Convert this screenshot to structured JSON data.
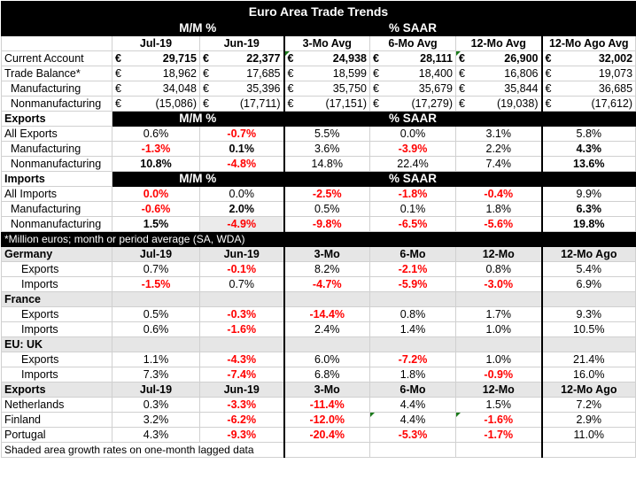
{
  "title": "Euro Area Trade Trends",
  "groups": {
    "mm": "M/M %",
    "saar": "% SAAR"
  },
  "cols": [
    "Jul-19",
    "Jun-19",
    "3-Mo Avg",
    "6-Mo Avg",
    "12-Mo Avg",
    "12-Mo Ago Avg"
  ],
  "euro": "€",
  "levels": [
    {
      "label": "Current Account",
      "vals": [
        "29,715",
        "22,377",
        "24,938",
        "28,111",
        "26,900",
        "32,002"
      ]
    },
    {
      "label": "Trade Balance*",
      "vals": [
        "18,962",
        "17,685",
        "18,599",
        "18,400",
        "16,806",
        "19,073"
      ]
    },
    {
      "label": "Manufacturing",
      "vals": [
        "34,048",
        "35,396",
        "35,750",
        "35,679",
        "35,844",
        "36,685"
      ]
    },
    {
      "label": "Nonmanufacturing",
      "vals": [
        "(15,086)",
        "(17,711)",
        "(17,151)",
        "(17,279)",
        "(19,038)",
        "(17,612)"
      ]
    }
  ],
  "exports": {
    "header": "Exports",
    "rows": [
      {
        "label": "All Exports",
        "vals": [
          "0.6%",
          "-0.7%",
          "5.5%",
          "0.0%",
          "3.1%",
          "5.8%"
        ]
      },
      {
        "label": "Manufacturing",
        "vals": [
          "-1.3%",
          "0.1%",
          "3.6%",
          "-3.9%",
          "2.2%",
          "4.3%"
        ]
      },
      {
        "label": "Nonmanufacturing",
        "vals": [
          "10.8%",
          "-4.8%",
          "14.8%",
          "22.4%",
          "7.4%",
          "13.6%"
        ]
      }
    ]
  },
  "imports": {
    "header": "Imports",
    "rows": [
      {
        "label": "All Imports",
        "vals": [
          "0.0%",
          "0.0%",
          "-2.5%",
          "-1.8%",
          "-0.4%",
          "9.9%"
        ]
      },
      {
        "label": "Manufacturing",
        "vals": [
          "-0.6%",
          "2.0%",
          "0.5%",
          "0.1%",
          "1.8%",
          "6.3%"
        ]
      },
      {
        "label": "Nonmanufacturing",
        "vals": [
          "1.5%",
          "-4.9%",
          "-9.8%",
          "-6.5%",
          "-5.6%",
          "19.8%"
        ]
      }
    ]
  },
  "note1": "*Million euros; month or period average (SA, WDA)",
  "cols2": [
    "Jul-19",
    "Jun-19",
    "3-Mo",
    "6-Mo",
    "12-Mo",
    "12-Mo Ago"
  ],
  "countries": [
    {
      "name": "Germany",
      "rows": [
        {
          "label": "Exports",
          "vals": [
            "0.7%",
            "-0.1%",
            "8.2%",
            "-2.1%",
            "0.8%",
            "5.4%"
          ]
        },
        {
          "label": "Imports",
          "vals": [
            "-1.5%",
            "0.7%",
            "-4.7%",
            "-5.9%",
            "-3.0%",
            "6.9%"
          ]
        }
      ]
    },
    {
      "name": "France",
      "rows": [
        {
          "label": "Exports",
          "vals": [
            "0.5%",
            "-0.3%",
            "-14.4%",
            "0.8%",
            "1.7%",
            "9.3%"
          ]
        },
        {
          "label": "Imports",
          "vals": [
            "0.6%",
            "-1.6%",
            "2.4%",
            "1.4%",
            "1.0%",
            "10.5%"
          ]
        }
      ]
    },
    {
      "name": "EU: UK",
      "rows": [
        {
          "label": "Exports",
          "vals": [
            "1.1%",
            "-4.3%",
            "6.0%",
            "-7.2%",
            "1.0%",
            "21.4%"
          ]
        },
        {
          "label": "Imports",
          "vals": [
            "7.3%",
            "-7.4%",
            "6.8%",
            "1.8%",
            "-0.9%",
            "16.0%"
          ]
        }
      ]
    }
  ],
  "exports2": {
    "header": "Exports",
    "rows": [
      {
        "label": "Netherlands",
        "vals": [
          "0.3%",
          "-3.3%",
          "-11.4%",
          "4.4%",
          "1.5%",
          "7.2%"
        ]
      },
      {
        "label": "Finland",
        "vals": [
          "3.2%",
          "-6.2%",
          "-12.0%",
          "4.4%",
          "-1.6%",
          "2.9%"
        ]
      },
      {
        "label": "Portugal",
        "vals": [
          "4.3%",
          "-9.3%",
          "-20.4%",
          "-5.3%",
          "-1.7%",
          "11.0%"
        ]
      }
    ]
  },
  "note2": "Shaded area growth rates on one-month lagged data"
}
